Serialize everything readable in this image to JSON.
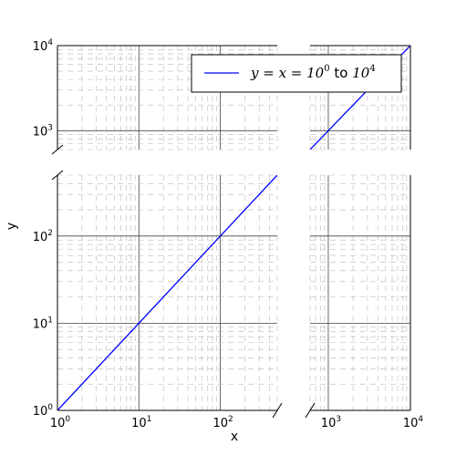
{
  "chart_data": {
    "type": "line",
    "xlabel": "x",
    "ylabel": "y",
    "x_scale": "log",
    "y_scale": "log",
    "broken_axes": true,
    "x_panels": [
      {
        "xlim": [
          1,
          500
        ],
        "ticks": [
          1,
          10,
          100
        ]
      },
      {
        "xlim": [
          600,
          10000
        ],
        "ticks": [
          1000,
          10000
        ]
      }
    ],
    "y_panels": [
      {
        "ylim": [
          1,
          500
        ],
        "ticks": [
          1,
          10,
          100
        ]
      },
      {
        "ylim": [
          600,
          10000
        ],
        "ticks": [
          1000,
          10000
        ]
      }
    ],
    "grid": true,
    "grid_minor": true,
    "legend_position": "top-right",
    "series": [
      {
        "name": "y = x = 10^0 to 10^4",
        "legend_parts": {
          "lhs": "y = x = 10",
          "exp1": "0",
          "mid": "to",
          "base2": "10",
          "exp2": "4"
        },
        "color": "#0000ff",
        "x": [
          1,
          10000
        ],
        "y": [
          1,
          10000
        ]
      }
    ]
  }
}
